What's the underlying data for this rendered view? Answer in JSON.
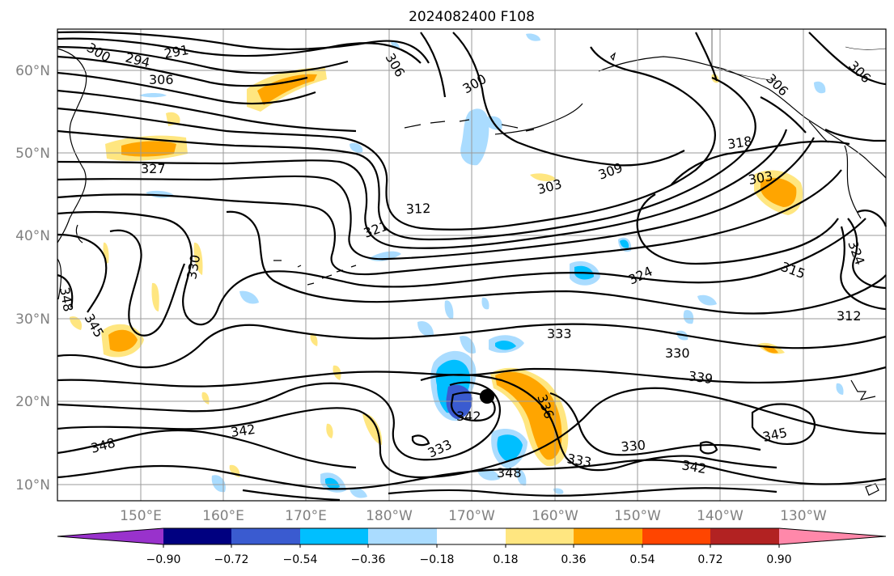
{
  "title": "2024082400 F108",
  "lat_ticks": [
    "10°N",
    "20°N",
    "30°N",
    "40°N",
    "50°N",
    "60°N"
  ],
  "lon_ticks": [
    "150°E",
    "160°E",
    "170°E",
    "180°W",
    "170°W",
    "160°W",
    "150°W",
    "140°W",
    "130°W"
  ],
  "colorbar": {
    "colors": [
      "#9932cc",
      "#000080",
      "#3a5bd0",
      "#00bfff",
      "#aadcff",
      "#ffffff",
      "#ffe680",
      "#ffa500",
      "#ff4500",
      "#b22222",
      "#ff88aa"
    ],
    "labels": [
      "−0.90",
      "−0.72",
      "−0.54",
      "−0.36",
      "−0.18",
      "0.18",
      "0.36",
      "0.54",
      "0.72",
      "0.90"
    ]
  },
  "contour_labels": [
    "291",
    "294",
    "300",
    "306",
    "306",
    "300",
    "306",
    "306",
    "318",
    "303",
    "309",
    "303",
    "312",
    "321",
    "327",
    "330",
    "324",
    "315",
    "312",
    "324",
    "348",
    "345",
    "333",
    "330",
    "339",
    "336",
    "342",
    "342",
    "333",
    "348",
    "333",
    "330",
    "342",
    "345",
    "348"
  ],
  "marker": "storm-center"
}
